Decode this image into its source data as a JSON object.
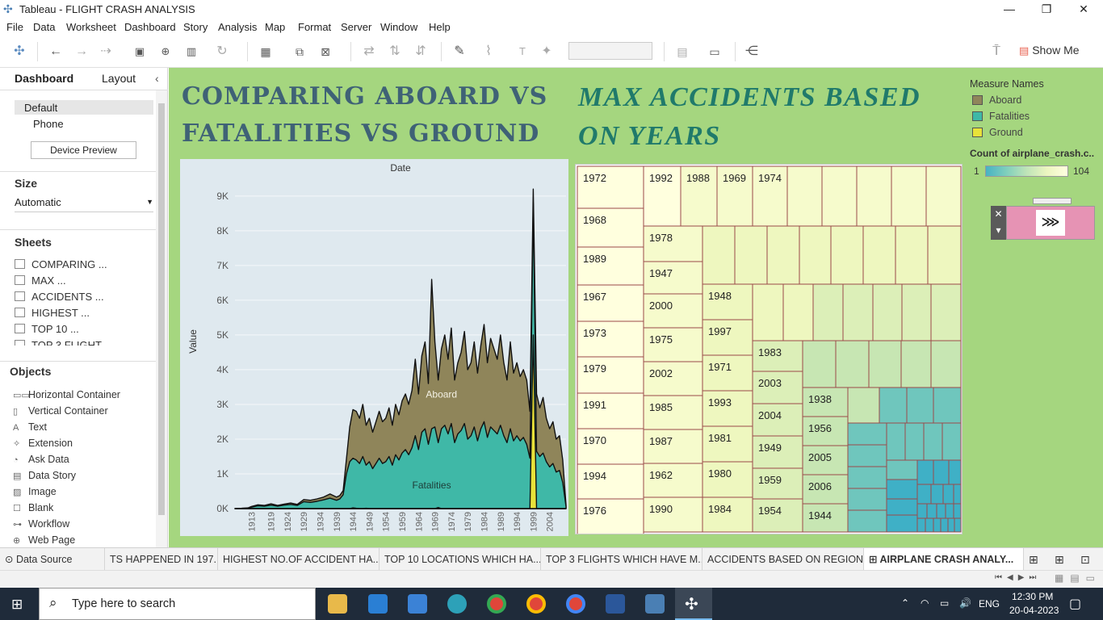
{
  "window": {
    "title": "Tableau - FLIGHT CRASH ANALYSIS"
  },
  "menu": [
    "File",
    "Data",
    "Worksheet",
    "Dashboard",
    "Story",
    "Analysis",
    "Map",
    "Format",
    "Server",
    "Window",
    "Help"
  ],
  "toolbar": {
    "show_me": "Show Me"
  },
  "left_panel": {
    "tabs": [
      "Dashboard",
      "Layout"
    ],
    "device_options": [
      "Default",
      "Phone"
    ],
    "device_preview": "Device Preview",
    "size_header": "Size",
    "size_value": "Automatic",
    "sheets_header": "Sheets",
    "sheets": [
      "COMPARING ...",
      "MAX ...",
      "ACCIDENTS ...",
      "HIGHEST ...",
      "TOP 10 ...",
      "TOP 3 FLIGHT"
    ],
    "objects_header": "Objects",
    "objects": [
      "Horizontal Container",
      "Vertical Container",
      "Text",
      "Extension",
      "Ask Data",
      "Data Story",
      "Image",
      "Blank",
      "Workflow",
      "Web Page"
    ]
  },
  "dashboard": {
    "title_left_1": "COMPARING ABOARD VS",
    "title_left_2": "FATALITIES VS GROUND",
    "title_right_1": "MAX ACCIDENTS BASED",
    "title_right_2": "ON YEARS",
    "legend": {
      "header": "Measure Names",
      "items": [
        {
          "label": "Aboard",
          "color": "#8f855a"
        },
        {
          "label": "Fatalities",
          "color": "#3fb8a7"
        },
        {
          "label": "Ground",
          "color": "#e8e23a"
        }
      ],
      "count_header": "Count of airplane_crash.c..",
      "count_min": "1",
      "count_max": "104"
    },
    "pager_symbol": "⋙"
  },
  "chart_data": {
    "type": "area",
    "title": "",
    "xlabel": "Date",
    "ylabel": "Value",
    "x_ticks": [
      "1913",
      "1919",
      "1924",
      "1929",
      "1934",
      "1939",
      "1944",
      "1949",
      "1954",
      "1959",
      "1964",
      "1969",
      "1974",
      "1979",
      "1984",
      "1989",
      "1994",
      "1999",
      "2004"
    ],
    "y_ticks": [
      "0K",
      "1K",
      "2K",
      "3K",
      "4K",
      "5K",
      "6K",
      "7K",
      "8K",
      "9K"
    ],
    "ylim": [
      0,
      9600
    ],
    "x": [
      1908,
      1910,
      1912,
      1913,
      1915,
      1917,
      1919,
      1921,
      1923,
      1925,
      1927,
      1929,
      1931,
      1933,
      1935,
      1937,
      1939,
      1940,
      1941,
      1942,
      1943,
      1944,
      1945,
      1946,
      1947,
      1948,
      1949,
      1950,
      1951,
      1952,
      1953,
      1954,
      1955,
      1956,
      1957,
      1958,
      1959,
      1960,
      1961,
      1962,
      1963,
      1964,
      1965,
      1966,
      1967,
      1968,
      1969,
      1970,
      1971,
      1972,
      1973,
      1974,
      1975,
      1976,
      1977,
      1978,
      1979,
      1980,
      1981,
      1982,
      1983,
      1984,
      1985,
      1986,
      1987,
      1988,
      1989,
      1990,
      1991,
      1992,
      1993,
      1994,
      1995,
      1996,
      1997,
      1998,
      1999,
      2000,
      2001,
      2002,
      2003,
      2004,
      2005,
      2006,
      2007,
      2008,
      2009
    ],
    "series": [
      {
        "name": "Aboard",
        "values": [
          2,
          10,
          20,
          60,
          110,
          90,
          140,
          90,
          130,
          160,
          120,
          260,
          240,
          280,
          330,
          420,
          330,
          380,
          520,
          1420,
          2350,
          2850,
          2800,
          2600,
          3000,
          2400,
          2600,
          2200,
          2500,
          2800,
          2500,
          2600,
          2900,
          2400,
          3000,
          2700,
          3100,
          3300,
          3000,
          3400,
          4300,
          3300,
          4400,
          4800,
          3600,
          6600,
          4800,
          3700,
          4600,
          5000,
          4300,
          5200,
          3700,
          4200,
          4500,
          5100,
          4000,
          4200,
          4800,
          3900,
          4700,
          5300,
          4200,
          4900,
          4600,
          4300,
          5000,
          4200,
          3700,
          4800,
          3900,
          4200,
          3800,
          4000,
          3700,
          2800,
          9200,
          3300,
          2900,
          3200,
          2600,
          2300,
          2500,
          2000,
          2100,
          1400,
          100
        ]
      },
      {
        "name": "Fatalities",
        "values": [
          1,
          6,
          14,
          40,
          80,
          70,
          100,
          70,
          100,
          120,
          90,
          200,
          180,
          210,
          250,
          300,
          240,
          280,
          400,
          1000,
          1350,
          1450,
          1400,
          1300,
          1500,
          1250,
          1350,
          1150,
          1300,
          1450,
          1300,
          1350,
          1500,
          1250,
          1550,
          1400,
          1600,
          1700,
          1550,
          1750,
          2100,
          1700,
          2200,
          2300,
          1850,
          2300,
          2350,
          1900,
          2300,
          2400,
          2150,
          2450,
          1900,
          2150,
          2250,
          2450,
          2000,
          2100,
          2350,
          1950,
          2300,
          2500,
          2050,
          2350,
          2250,
          2150,
          2400,
          2100,
          1900,
          2300,
          1950,
          2100,
          1950,
          2050,
          1850,
          1450,
          8800,
          1650,
          1500,
          1600,
          1350,
          1200,
          1300,
          1050,
          1100,
          750,
          60
        ]
      },
      {
        "name": "Ground",
        "values": [
          0,
          0,
          0,
          0,
          0,
          0,
          0,
          0,
          0,
          0,
          0,
          0,
          0,
          0,
          0,
          0,
          0,
          0,
          0,
          0,
          0,
          20,
          10,
          0,
          0,
          10,
          0,
          0,
          0,
          0,
          0,
          0,
          0,
          0,
          0,
          0,
          0,
          0,
          0,
          0,
          0,
          0,
          0,
          0,
          0,
          0,
          0,
          30,
          0,
          0,
          0,
          0,
          0,
          0,
          0,
          0,
          0,
          0,
          0,
          0,
          0,
          0,
          0,
          0,
          0,
          0,
          0,
          0,
          0,
          0,
          0,
          0,
          0,
          0,
          0,
          0,
          5000,
          0,
          0,
          0,
          0,
          0,
          0,
          0,
          0,
          0,
          0
        ]
      }
    ],
    "labels": [
      {
        "series": "Aboard",
        "text": "Aboard"
      },
      {
        "series": "Fatalities",
        "text": "Fatalities"
      }
    ]
  },
  "treemap": {
    "columns": [
      {
        "years": [
          "1972",
          "1968",
          "1989",
          "1967",
          "1973",
          "1979",
          "1991",
          "1970",
          "1994",
          "1976"
        ]
      },
      {
        "years": [
          "1992",
          "1978",
          "1947",
          "2000",
          "1975",
          "2002",
          "1985",
          "1987",
          "1962",
          "1990"
        ]
      },
      {
        "years": [
          "1988",
          "1948",
          "1997",
          "1971",
          "1993",
          "1981",
          "1980",
          "1984"
        ]
      },
      {
        "years": [
          "1969",
          "1983",
          "2003",
          "2004",
          "1949",
          "1959",
          "1954"
        ]
      },
      {
        "years": [
          "1974",
          "1938",
          "1956",
          "2005",
          "2006",
          "1944"
        ]
      }
    ]
  },
  "sheet_tabs": {
    "data_source": "Data Source",
    "tabs": [
      "TS HAPPENED IN 197...",
      "HIGHEST NO.OF ACCIDENT HA...",
      "TOP 10 LOCATIONS WHICH HA...",
      "TOP 3 FLIGHTS WHICH HAVE M...",
      "ACCIDENTS BASED ON REGIONS",
      "AIRPLANE CRASH ANALY..."
    ]
  },
  "taskbar": {
    "search_placeholder": "Type here to search",
    "lang": "ENG",
    "time": "12:30 PM",
    "date": "20-04-2023"
  }
}
